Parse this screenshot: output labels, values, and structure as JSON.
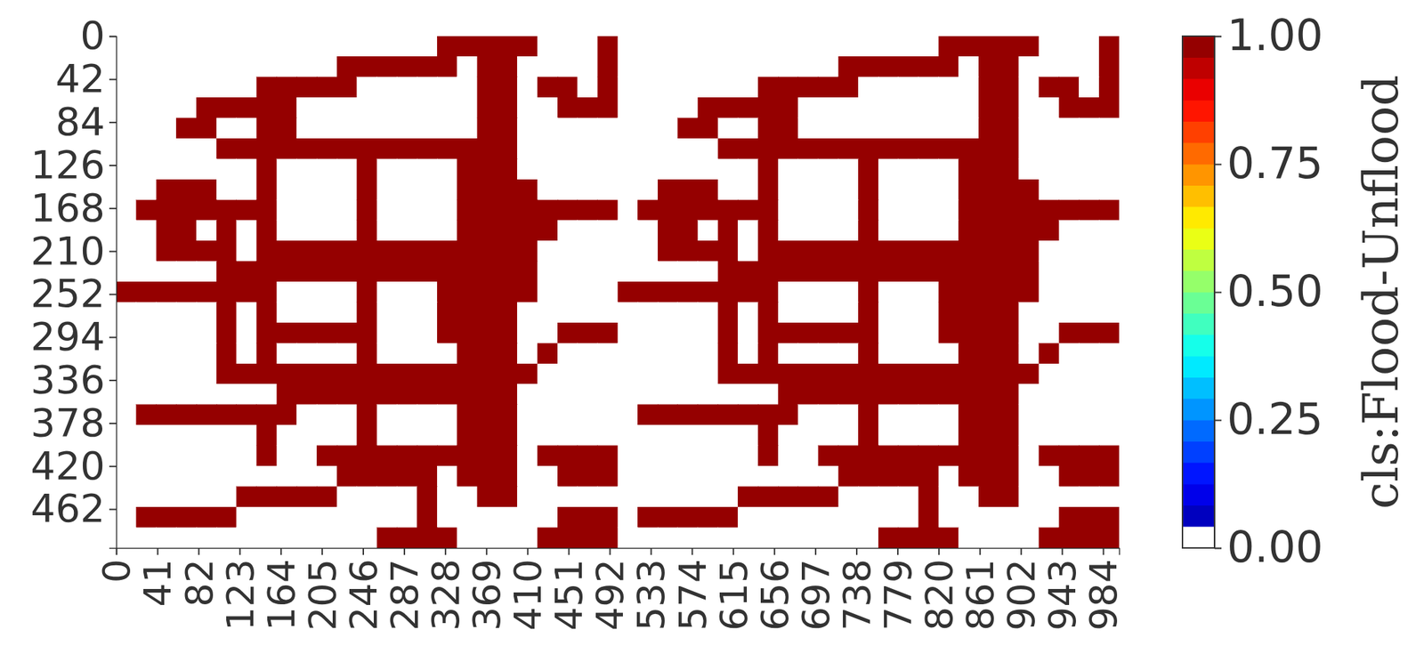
{
  "chart_data": {
    "type": "heatmap",
    "xlim": [
      0,
      1000
    ],
    "ylim": [
      0,
      500
    ],
    "xticks": [
      0,
      41,
      82,
      123,
      164,
      205,
      246,
      287,
      328,
      369,
      410,
      451,
      492,
      533,
      574,
      615,
      656,
      697,
      738,
      779,
      820,
      861,
      902,
      943,
      984
    ],
    "yticks": [
      0,
      42,
      84,
      126,
      168,
      210,
      252,
      294,
      336,
      378,
      420,
      462
    ],
    "x": [
      0,
      20,
      40,
      60,
      80,
      100,
      120,
      140,
      160,
      180,
      200,
      220,
      240,
      260,
      280,
      300,
      320,
      340,
      360,
      380,
      400,
      420,
      440,
      460,
      480,
      500,
      520,
      540,
      560,
      580,
      600,
      620,
      640,
      660,
      680,
      700,
      720,
      740,
      760,
      780,
      800,
      820,
      840,
      860,
      880,
      900,
      920,
      940,
      960,
      980
    ],
    "y": [
      0,
      20,
      40,
      60,
      80,
      100,
      120,
      140,
      160,
      180,
      200,
      220,
      240,
      260,
      280,
      300,
      320,
      340,
      360,
      380,
      400,
      420,
      440,
      460,
      480
    ],
    "z": [
      [
        0,
        0,
        0,
        0,
        0,
        0,
        0,
        0,
        0,
        0,
        0,
        0,
        0,
        0,
        0,
        0,
        1,
        1,
        1,
        1,
        1,
        0,
        0,
        0,
        1,
        0,
        0,
        0,
        0,
        0,
        0,
        0,
        0,
        0,
        0,
        0,
        0,
        0,
        0,
        0,
        0,
        1,
        1,
        1,
        1,
        1,
        0,
        0,
        0,
        1
      ],
      [
        0,
        0,
        0,
        0,
        0,
        0,
        0,
        0,
        0,
        0,
        0,
        1,
        1,
        1,
        1,
        1,
        1,
        0,
        1,
        1,
        0,
        0,
        0,
        0,
        1,
        0,
        0,
        0,
        0,
        0,
        0,
        0,
        0,
        0,
        0,
        0,
        1,
        1,
        1,
        1,
        1,
        1,
        0,
        1,
        1,
        0,
        0,
        0,
        0,
        1
      ],
      [
        0,
        0,
        0,
        0,
        0,
        0,
        0,
        1,
        1,
        1,
        1,
        1,
        0,
        0,
        0,
        0,
        0,
        0,
        1,
        1,
        0,
        1,
        1,
        0,
        1,
        0,
        0,
        0,
        0,
        0,
        0,
        0,
        1,
        1,
        1,
        1,
        1,
        0,
        0,
        0,
        0,
        0,
        0,
        1,
        1,
        0,
        1,
        1,
        0,
        1
      ],
      [
        0,
        0,
        0,
        0,
        1,
        1,
        1,
        1,
        1,
        0,
        0,
        0,
        0,
        0,
        0,
        0,
        0,
        0,
        1,
        1,
        0,
        0,
        1,
        1,
        1,
        0,
        0,
        0,
        0,
        1,
        1,
        1,
        1,
        1,
        0,
        0,
        0,
        0,
        0,
        0,
        0,
        0,
        0,
        1,
        1,
        0,
        0,
        1,
        1,
        1
      ],
      [
        0,
        0,
        0,
        1,
        1,
        0,
        0,
        1,
        1,
        0,
        0,
        0,
        0,
        0,
        0,
        0,
        0,
        0,
        1,
        1,
        0,
        0,
        0,
        0,
        0,
        0,
        0,
        0,
        1,
        1,
        0,
        0,
        1,
        1,
        0,
        0,
        0,
        0,
        0,
        0,
        0,
        0,
        0,
        1,
        1,
        0,
        0,
        0,
        0,
        0
      ],
      [
        0,
        0,
        0,
        0,
        0,
        1,
        1,
        1,
        1,
        1,
        1,
        1,
        1,
        1,
        1,
        1,
        1,
        1,
        1,
        1,
        0,
        0,
        0,
        0,
        0,
        0,
        0,
        0,
        0,
        0,
        1,
        1,
        1,
        1,
        1,
        1,
        1,
        1,
        1,
        1,
        1,
        1,
        1,
        1,
        1,
        0,
        0,
        0,
        0,
        0
      ],
      [
        0,
        0,
        0,
        0,
        0,
        0,
        0,
        1,
        0,
        0,
        0,
        0,
        1,
        0,
        0,
        0,
        0,
        1,
        1,
        1,
        0,
        0,
        0,
        0,
        0,
        0,
        0,
        0,
        0,
        0,
        0,
        0,
        1,
        0,
        0,
        0,
        0,
        1,
        0,
        0,
        0,
        0,
        1,
        1,
        1,
        0,
        0,
        0,
        0,
        0
      ],
      [
        0,
        0,
        1,
        1,
        1,
        0,
        0,
        1,
        0,
        0,
        0,
        0,
        1,
        0,
        0,
        0,
        0,
        1,
        1,
        1,
        1,
        0,
        0,
        0,
        0,
        0,
        0,
        1,
        1,
        1,
        0,
        0,
        1,
        0,
        0,
        0,
        0,
        1,
        0,
        0,
        0,
        0,
        1,
        1,
        1,
        1,
        0,
        0,
        0,
        0
      ],
      [
        0,
        1,
        1,
        1,
        1,
        1,
        1,
        1,
        0,
        0,
        0,
        0,
        1,
        0,
        0,
        0,
        0,
        1,
        1,
        1,
        1,
        1,
        1,
        1,
        1,
        0,
        1,
        1,
        1,
        1,
        1,
        1,
        1,
        0,
        0,
        0,
        0,
        1,
        0,
        0,
        0,
        0,
        1,
        1,
        1,
        1,
        1,
        1,
        1,
        1
      ],
      [
        0,
        0,
        1,
        1,
        0,
        1,
        0,
        1,
        0,
        0,
        0,
        0,
        1,
        0,
        0,
        0,
        0,
        1,
        1,
        1,
        1,
        1,
        0,
        0,
        0,
        0,
        0,
        1,
        1,
        0,
        1,
        0,
        1,
        0,
        0,
        0,
        0,
        1,
        0,
        0,
        0,
        0,
        1,
        1,
        1,
        1,
        1,
        0,
        0,
        0
      ],
      [
        0,
        0,
        1,
        1,
        1,
        1,
        0,
        1,
        1,
        1,
        1,
        1,
        1,
        1,
        1,
        1,
        1,
        1,
        1,
        1,
        1,
        0,
        0,
        0,
        0,
        0,
        0,
        1,
        1,
        1,
        1,
        0,
        1,
        1,
        1,
        1,
        1,
        1,
        1,
        1,
        1,
        1,
        1,
        1,
        1,
        1,
        0,
        0,
        0,
        0
      ],
      [
        0,
        0,
        0,
        0,
        0,
        1,
        1,
        1,
        1,
        1,
        1,
        1,
        1,
        1,
        1,
        1,
        1,
        1,
        1,
        1,
        1,
        0,
        0,
        0,
        0,
        0,
        0,
        0,
        0,
        0,
        1,
        1,
        1,
        1,
        1,
        1,
        1,
        1,
        1,
        1,
        1,
        1,
        1,
        1,
        1,
        1,
        0,
        0,
        0,
        0
      ],
      [
        1,
        1,
        1,
        1,
        1,
        1,
        1,
        1,
        0,
        0,
        0,
        0,
        1,
        0,
        0,
        0,
        1,
        1,
        1,
        1,
        1,
        0,
        0,
        0,
        0,
        1,
        1,
        1,
        1,
        1,
        1,
        1,
        1,
        0,
        0,
        0,
        0,
        1,
        0,
        0,
        0,
        1,
        1,
        1,
        1,
        1,
        0,
        0,
        0,
        0
      ],
      [
        0,
        0,
        0,
        0,
        0,
        1,
        0,
        1,
        0,
        0,
        0,
        0,
        1,
        0,
        0,
        0,
        1,
        1,
        1,
        1,
        0,
        0,
        0,
        0,
        0,
        0,
        0,
        0,
        0,
        0,
        1,
        0,
        1,
        0,
        0,
        0,
        0,
        1,
        0,
        0,
        0,
        1,
        1,
        1,
        1,
        0,
        0,
        0,
        0,
        0
      ],
      [
        0,
        0,
        0,
        0,
        0,
        1,
        0,
        1,
        1,
        1,
        1,
        1,
        1,
        0,
        0,
        0,
        1,
        1,
        1,
        1,
        0,
        0,
        1,
        1,
        1,
        0,
        0,
        0,
        0,
        0,
        1,
        0,
        1,
        1,
        1,
        1,
        1,
        1,
        0,
        0,
        0,
        1,
        1,
        1,
        1,
        0,
        0,
        1,
        1,
        1
      ],
      [
        0,
        0,
        0,
        0,
        0,
        1,
        0,
        1,
        0,
        0,
        0,
        0,
        1,
        0,
        0,
        0,
        0,
        1,
        1,
        1,
        0,
        1,
        0,
        0,
        0,
        0,
        0,
        0,
        0,
        0,
        1,
        0,
        1,
        0,
        0,
        0,
        0,
        1,
        0,
        0,
        0,
        0,
        1,
        1,
        1,
        0,
        1,
        0,
        0,
        0
      ],
      [
        0,
        0,
        0,
        0,
        0,
        1,
        1,
        1,
        1,
        1,
        1,
        1,
        1,
        1,
        1,
        1,
        1,
        1,
        1,
        1,
        1,
        0,
        0,
        0,
        0,
        0,
        0,
        0,
        0,
        0,
        1,
        1,
        1,
        1,
        1,
        1,
        1,
        1,
        1,
        1,
        1,
        1,
        1,
        1,
        1,
        1,
        0,
        0,
        0,
        0
      ],
      [
        0,
        0,
        0,
        0,
        0,
        0,
        0,
        0,
        1,
        1,
        1,
        1,
        1,
        1,
        1,
        1,
        1,
        1,
        1,
        1,
        0,
        0,
        0,
        0,
        0,
        0,
        0,
        0,
        0,
        0,
        0,
        0,
        0,
        1,
        1,
        1,
        1,
        1,
        1,
        1,
        1,
        1,
        1,
        1,
        1,
        0,
        0,
        0,
        0,
        0
      ],
      [
        0,
        1,
        1,
        1,
        1,
        1,
        1,
        1,
        1,
        0,
        0,
        0,
        1,
        0,
        0,
        0,
        0,
        1,
        1,
        1,
        0,
        0,
        0,
        0,
        0,
        0,
        1,
        1,
        1,
        1,
        1,
        1,
        1,
        1,
        0,
        0,
        0,
        1,
        0,
        0,
        0,
        0,
        1,
        1,
        1,
        0,
        0,
        0,
        0,
        0
      ],
      [
        0,
        0,
        0,
        0,
        0,
        0,
        0,
        1,
        0,
        0,
        0,
        0,
        1,
        0,
        0,
        0,
        0,
        1,
        1,
        1,
        0,
        0,
        0,
        0,
        0,
        0,
        0,
        0,
        0,
        0,
        0,
        0,
        1,
        0,
        0,
        0,
        0,
        1,
        0,
        0,
        0,
        0,
        1,
        1,
        1,
        0,
        0,
        0,
        0,
        0
      ],
      [
        0,
        0,
        0,
        0,
        0,
        0,
        0,
        1,
        0,
        0,
        1,
        1,
        1,
        1,
        1,
        1,
        1,
        1,
        1,
        1,
        0,
        1,
        1,
        1,
        1,
        0,
        0,
        0,
        0,
        0,
        0,
        0,
        1,
        0,
        0,
        1,
        1,
        1,
        1,
        1,
        1,
        1,
        1,
        1,
        1,
        0,
        1,
        1,
        1,
        1
      ],
      [
        0,
        0,
        0,
        0,
        0,
        0,
        0,
        0,
        0,
        0,
        0,
        1,
        1,
        1,
        1,
        1,
        0,
        1,
        1,
        1,
        0,
        0,
        1,
        1,
        1,
        0,
        0,
        0,
        0,
        0,
        0,
        0,
        0,
        0,
        0,
        0,
        1,
        1,
        1,
        1,
        1,
        0,
        1,
        1,
        1,
        0,
        0,
        1,
        1,
        1
      ],
      [
        0,
        0,
        0,
        0,
        0,
        0,
        1,
        1,
        1,
        1,
        1,
        0,
        0,
        0,
        0,
        1,
        0,
        0,
        1,
        1,
        0,
        0,
        0,
        0,
        0,
        0,
        0,
        0,
        0,
        0,
        0,
        1,
        1,
        1,
        1,
        1,
        0,
        0,
        0,
        0,
        1,
        0,
        0,
        1,
        1,
        0,
        0,
        0,
        0,
        0
      ],
      [
        0,
        1,
        1,
        1,
        1,
        1,
        0,
        0,
        0,
        0,
        0,
        0,
        0,
        0,
        0,
        1,
        0,
        0,
        0,
        0,
        0,
        0,
        1,
        1,
        1,
        0,
        1,
        1,
        1,
        1,
        1,
        0,
        0,
        0,
        0,
        0,
        0,
        0,
        0,
        0,
        1,
        0,
        0,
        0,
        0,
        0,
        0,
        1,
        1,
        1
      ],
      [
        0,
        0,
        0,
        0,
        0,
        0,
        0,
        0,
        0,
        0,
        0,
        0,
        0,
        1,
        1,
        1,
        1,
        0,
        0,
        0,
        0,
        1,
        1,
        1,
        1,
        0,
        0,
        0,
        0,
        0,
        0,
        0,
        0,
        0,
        0,
        0,
        0,
        0,
        1,
        1,
        1,
        1,
        0,
        0,
        0,
        0,
        1,
        1,
        1,
        1
      ]
    ],
    "colorbar": {
      "label": "cls:Flood-Unflood",
      "lim": [
        0,
        1
      ],
      "ticks": [
        {
          "value": 0,
          "label": "0.00"
        },
        {
          "value": 0.25,
          "label": "0.25"
        },
        {
          "value": 0.5,
          "label": "0.50"
        },
        {
          "value": 0.75,
          "label": "0.75"
        },
        {
          "value": 1,
          "label": "1.00"
        }
      ]
    }
  }
}
